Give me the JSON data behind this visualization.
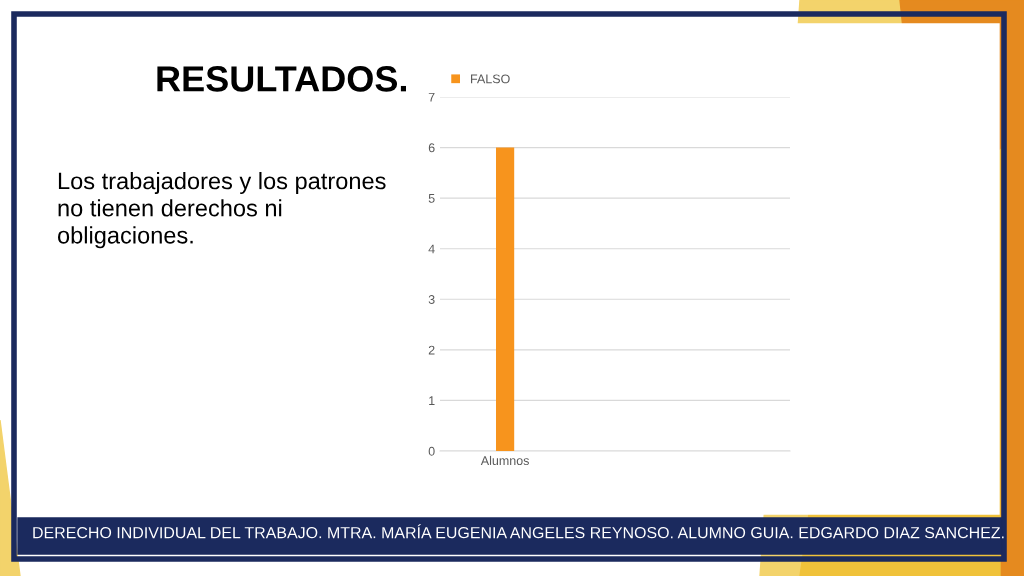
{
  "chart_data": {
    "type": "bar",
    "title": "RESULTADOS.",
    "annotations": [
      "Los trabajadores y los patrones no tienen derechos ni obligaciones.",
      "DERECHO INDIVIDUAL DEL TRABAJO. MTRA. MARÍA EUGENIA ANGELES REYNOSO. ALUMNO GUIA. EDGARDO DIAZ SANCHEZ."
    ],
    "categories": [
      "Alumnos"
    ],
    "series": [
      {
        "name": "FALSO",
        "color": "#f7941d",
        "values": [
          6
        ]
      }
    ],
    "ylim": [
      0,
      7
    ],
    "yticks": [
      0,
      1,
      2,
      3,
      4,
      5,
      6,
      7
    ],
    "grid": "y",
    "legend": "top left"
  }
}
